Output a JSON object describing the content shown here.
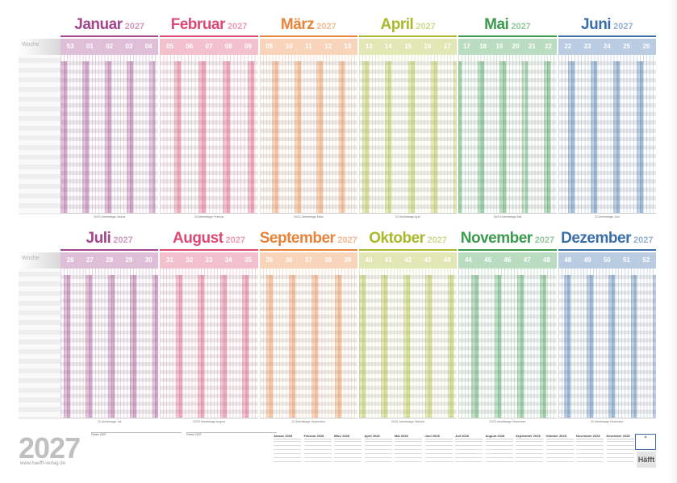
{
  "week_label": "Woche",
  "rows_half": 18,
  "top_months": [
    {
      "name": "Januar",
      "year": "2027",
      "color": "#a2478d",
      "weeks": [
        "53",
        "01",
        "02",
        "03",
        "04"
      ],
      "days": 31,
      "footer": "19/20 Arbeitstage Januar"
    },
    {
      "name": "Februar",
      "year": "2027",
      "color": "#dc4a73",
      "weeks": [
        "05",
        "06",
        "07",
        "08",
        "09"
      ],
      "days": 28,
      "footer": "20 Arbeitstage Februar"
    },
    {
      "name": "März",
      "year": "2027",
      "color": "#e8833a",
      "weeks": [
        "09",
        "10",
        "11",
        "12",
        "13"
      ],
      "days": 31,
      "footer": "20/21 Arbeitstage März"
    },
    {
      "name": "April",
      "year": "2027",
      "color": "#a8b92a",
      "weeks": [
        "13",
        "14",
        "15",
        "16",
        "17"
      ],
      "days": 30,
      "footer": "22 Arbeitstage April"
    },
    {
      "name": "Mai",
      "year": "2027",
      "color": "#3a9a4e",
      "weeks": [
        "17",
        "18",
        "19",
        "20",
        "21",
        "22"
      ],
      "days": 31,
      "footer": "18/19 Arbeitstage Mai"
    },
    {
      "name": "Juni",
      "year": "2027",
      "color": "#3a6ea8",
      "weeks": [
        "22",
        "23",
        "24",
        "25",
        "26"
      ],
      "days": 30,
      "footer": "22 Arbeitstage Juni"
    }
  ],
  "bottom_months": [
    {
      "name": "Juli",
      "year": "2027",
      "color": "#a2478d",
      "weeks": [
        "26",
        "27",
        "28",
        "29",
        "30"
      ],
      "days": 31,
      "footer": "22 Arbeitstage Juli"
    },
    {
      "name": "August",
      "year": "2027",
      "color": "#dc4a73",
      "weeks": [
        "31",
        "32",
        "33",
        "34",
        "35"
      ],
      "days": 31,
      "footer": "22/23 Arbeitstage August"
    },
    {
      "name": "September",
      "year": "2027",
      "color": "#e8833a",
      "weeks": [
        "35",
        "36",
        "37",
        "38",
        "39"
      ],
      "days": 30,
      "footer": "22 Arbeitstage September"
    },
    {
      "name": "Oktober",
      "year": "2027",
      "color": "#a8b92a",
      "weeks": [
        "40",
        "41",
        "42",
        "43",
        "44"
      ],
      "days": 31,
      "footer": "20/21 Arbeitstage Oktober"
    },
    {
      "name": "November",
      "year": "2027",
      "color": "#3a9a4e",
      "weeks": [
        "44",
        "45",
        "46",
        "47",
        "48"
      ],
      "days": 30,
      "footer": "21/22 Arbeitstage November"
    },
    {
      "name": "Dezember",
      "year": "2027",
      "color": "#3a6ea8",
      "weeks": [
        "48",
        "49",
        "50",
        "51",
        "52"
      ],
      "days": 31,
      "footer": "22 Arbeitstage Dezember"
    }
  ],
  "footer": {
    "year": "2027",
    "url": "www.haefft-verlag.de",
    "mini_calendars": [
      "Januar 2028",
      "Februar 2028",
      "März 2028",
      "April 2028",
      "Mai 2028",
      "Juni 2028",
      "Juli 2028",
      "August 2028",
      "September 2028",
      "Oktober 2028",
      "November 2028",
      "Dezember 2028"
    ],
    "holiday_table_title_left": "Ferien 2027",
    "holiday_table_title_right": "Ferien 2027",
    "logo_text": "Häfft"
  }
}
